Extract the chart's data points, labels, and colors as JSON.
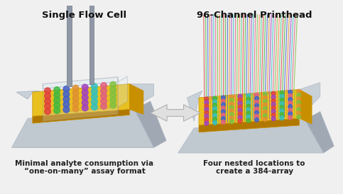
{
  "title_left": "Single Flow Cell",
  "title_right": "96-Channel Printhead",
  "caption_left": "Minimal analyte consumption via\n“one-on-many” assay format",
  "caption_right": "Four nested locations to\ncreate a 384-array",
  "bg_color": "#f0f0f0",
  "gold_top": "#E8C020",
  "gold_side": "#C89000",
  "gold_front": "#B07800",
  "tray_top": "#C8D0D8",
  "tray_side_l": "#B0B8C4",
  "tray_side_r": "#A0A8B4",
  "tray_front": "#C0C8D0",
  "glass_fill": "#D8E8F0",
  "glass_edge": "#9090A0",
  "tube_color": "#9098A8",
  "arrow_fill": "#E0E0E0",
  "arrow_edge": "#B0B0B0",
  "dot_colors": [
    "#E04040",
    "#40B840",
    "#4060D0",
    "#E09030",
    "#A040C0",
    "#30C0C0",
    "#E06080",
    "#80C040"
  ],
  "line_colors": [
    "#E04040",
    "#40B840",
    "#4060D0",
    "#E09030",
    "#A040C0",
    "#30C0C0",
    "#E06080",
    "#80C040",
    "#FF8040",
    "#40D080"
  ],
  "title_fontsize": 9.5,
  "caption_fontsize": 7.5
}
